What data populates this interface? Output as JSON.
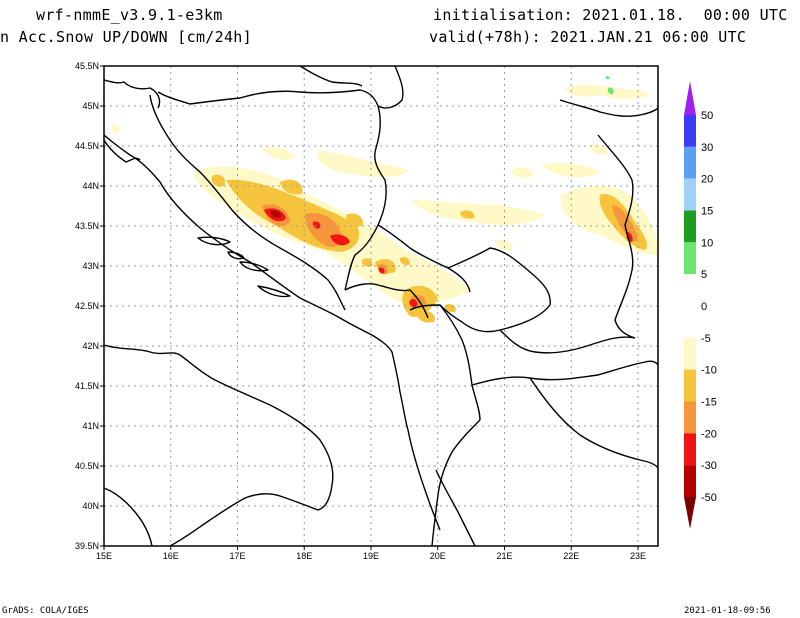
{
  "header": {
    "model": "wrf-nmmE_v3.9.1-e3km",
    "variable": "n Acc.Snow UP/DOWN [cm/24h]",
    "initialisation": "initialisation: 2021.01.18.  00:00 UTC",
    "valid": "valid(+78h): 2021.JAN.21 06:00 UTC"
  },
  "map": {
    "lon_range": [
      15,
      23.3
    ],
    "lat_range": [
      39.5,
      45.5
    ],
    "lat_ticks": [
      "45.5N",
      "45N",
      "44.5N",
      "44N",
      "43.5N",
      "43N",
      "42.5N",
      "42N",
      "41.5N",
      "41N",
      "40.5N",
      "40N",
      "39.5N"
    ],
    "lon_ticks": [
      "15E",
      "16E",
      "17E",
      "18E",
      "19E",
      "20E",
      "21E",
      "22E",
      "23E"
    ],
    "grid": true
  },
  "legend": {
    "labels": [
      "50",
      "30",
      "20",
      "15",
      "10",
      "5",
      "0",
      "-5",
      "-10",
      "-15",
      "-20",
      "-30",
      "-50"
    ],
    "colors": {
      "purple": "#a020f0",
      "blue": "#3c3cf5",
      "mid_blue": "#5aa0f0",
      "light_blue": "#a0d0f8",
      "dark_green": "#1e9e1e",
      "light_green": "#6ee66e",
      "white": "#ffffff",
      "pale_yellow": "#fff9c8",
      "yellow": "#f5c43c",
      "orange": "#f5963c",
      "red": "#f01414",
      "dark_red": "#b40000",
      "deep_red": "#780000"
    }
  },
  "footer": {
    "left": "GrADS: COLA/IGES",
    "right": "2021-01-18-09:56"
  }
}
